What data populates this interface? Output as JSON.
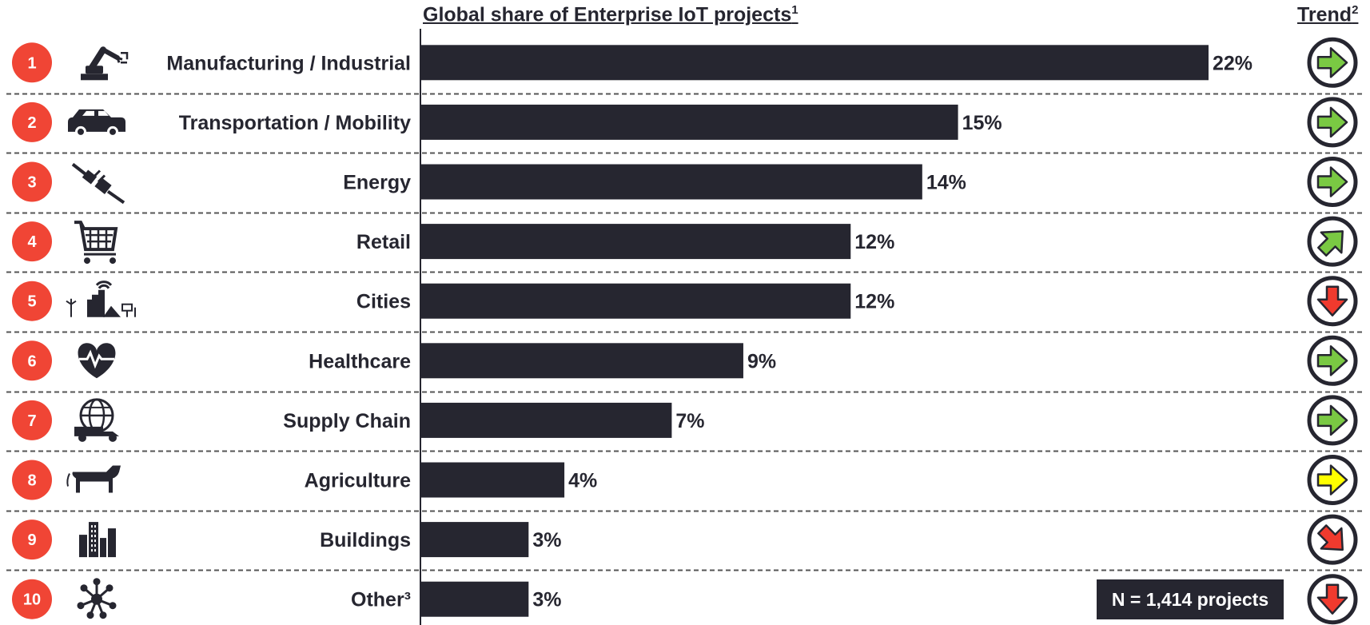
{
  "header": {
    "title": "Global share of Enterprise IoT projects",
    "title_sup": "1",
    "trend_title": "Trend",
    "trend_sup": "2"
  },
  "note": "N = 1,414 projects",
  "colors": {
    "bar": "#262630",
    "rank_circle": "#f04535",
    "arrow_green": "#7ac943",
    "arrow_yellow": "#ffff00",
    "arrow_red": "#f03a2e"
  },
  "chart_data": {
    "type": "bar",
    "orientation": "horizontal",
    "categories": [
      "Manufacturing / Industrial",
      "Transportation / Mobility",
      "Energy",
      "Retail",
      "Cities",
      "Healthcare",
      "Supply Chain",
      "Agriculture",
      "Buildings",
      "Other³"
    ],
    "values": [
      22,
      15,
      14,
      12,
      12,
      9,
      7,
      4,
      3,
      3
    ],
    "value_labels": [
      "22%",
      "15%",
      "14%",
      "12%",
      "12%",
      "9%",
      "7%",
      "4%",
      "3%",
      "3%"
    ],
    "ranks": [
      "1",
      "2",
      "3",
      "4",
      "5",
      "6",
      "7",
      "8",
      "9",
      "10"
    ],
    "icons": [
      "robot-arm-icon",
      "car-icon",
      "plug-icon",
      "shopping-cart-icon",
      "city-icon",
      "heart-pulse-icon",
      "globe-truck-icon",
      "cow-icon",
      "buildings-icon",
      "network-icon"
    ],
    "trends": [
      "right",
      "right",
      "right",
      "up-right",
      "down",
      "right",
      "right",
      "right",
      "down-right",
      "down"
    ],
    "trend_colors": [
      "green",
      "green",
      "green",
      "green",
      "red",
      "green",
      "green",
      "yellow",
      "red",
      "red"
    ],
    "title": "Global share of Enterprise IoT projects",
    "xlim": [
      0,
      24
    ],
    "grid": false
  }
}
